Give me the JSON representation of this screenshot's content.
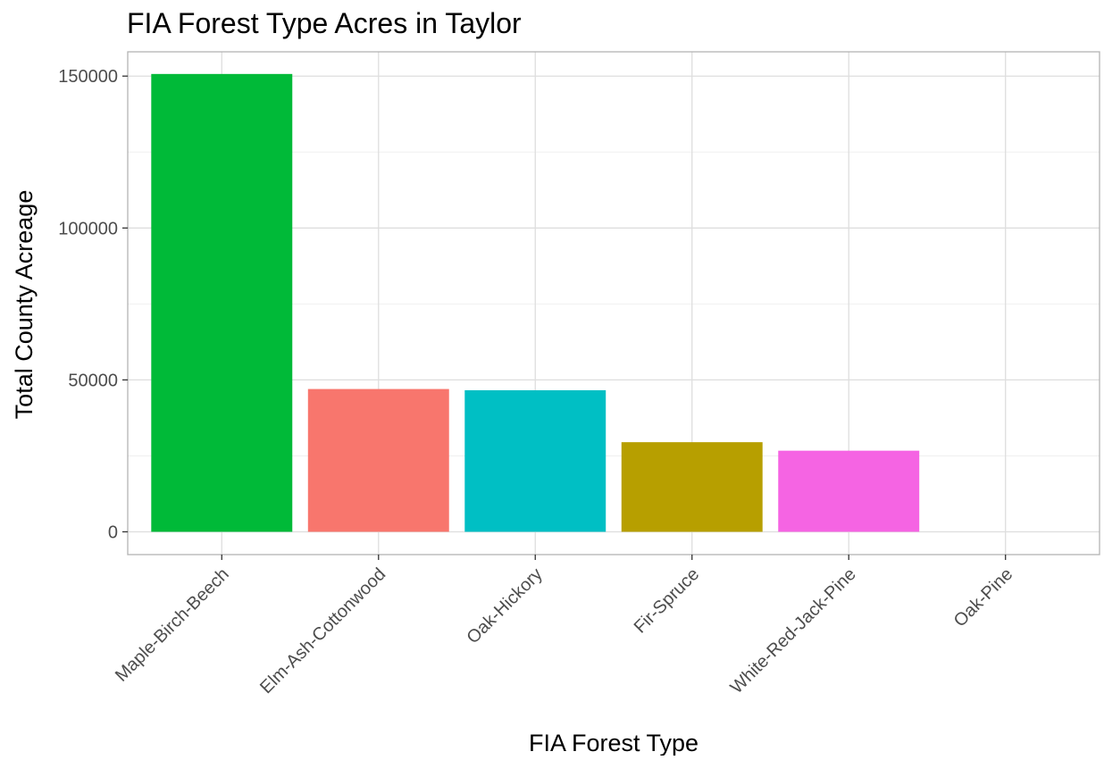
{
  "chart_data": {
    "type": "bar",
    "title": "FIA Forest Type Acres in Taylor",
    "xlabel": "FIA Forest Type",
    "ylabel": "Total County Acreage",
    "categories": [
      "Maple-Birch-Beech",
      "Elm-Ash-Cottonwood",
      "Oak-Hickory",
      "Fir-Spruce",
      "White-Red-Jack-Pine",
      "Oak-Pine"
    ],
    "values": [
      150700,
      47000,
      46600,
      29500,
      26700,
      0
    ],
    "colors": [
      "#00BA38",
      "#F8766D",
      "#00BFC4",
      "#B79F00",
      "#F564E3",
      "#619CFF"
    ],
    "ylim": [
      -7500,
      158000
    ],
    "yticks": [
      0,
      50000,
      100000,
      150000
    ],
    "yticklabels": [
      "0",
      "50000",
      "100000",
      "150000"
    ],
    "grid": true,
    "legend": "none"
  }
}
